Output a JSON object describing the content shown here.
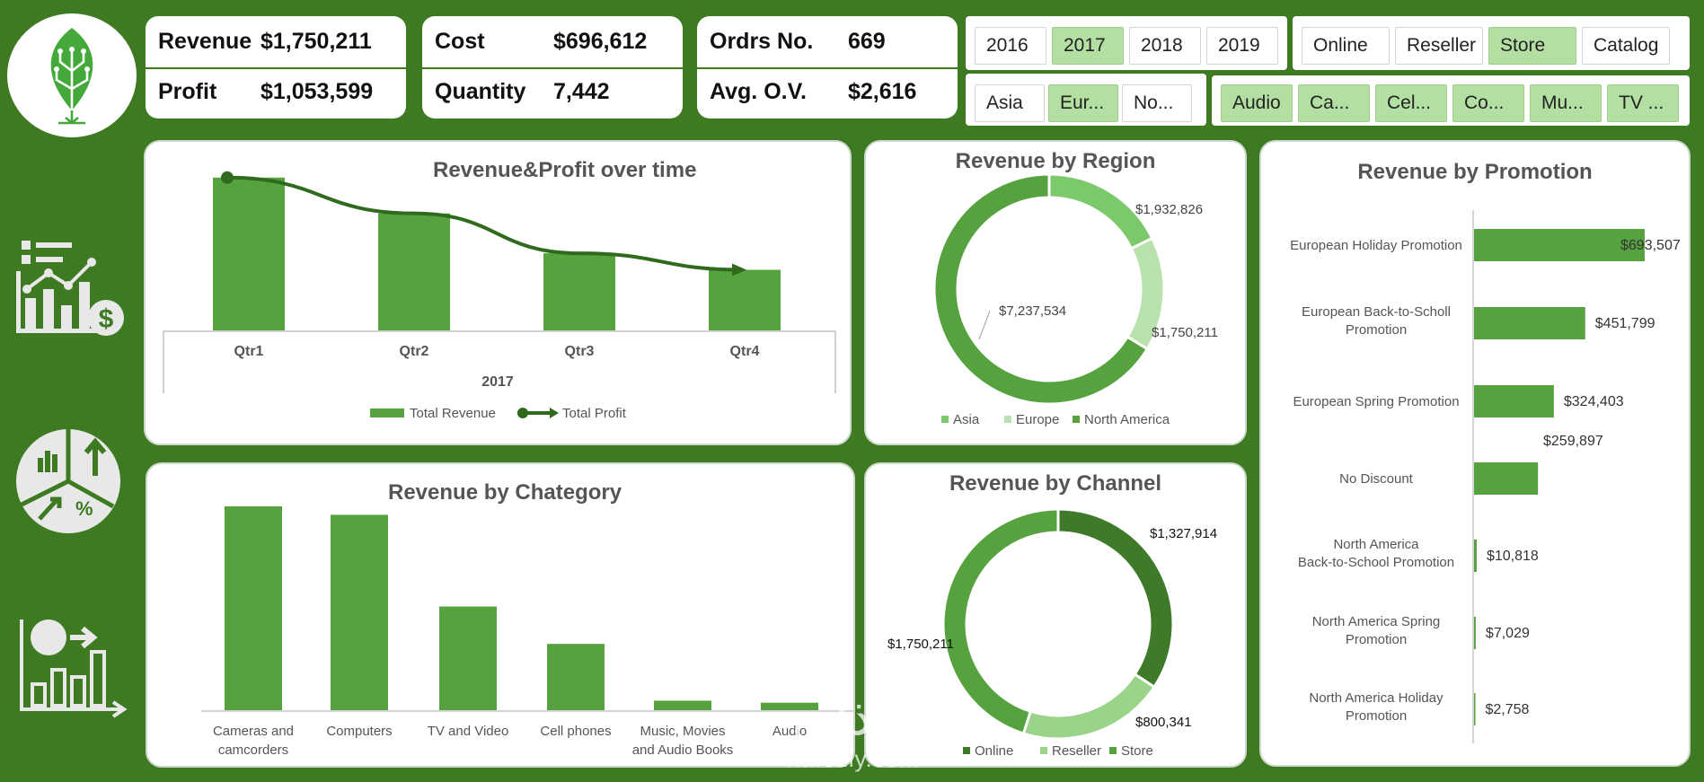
{
  "colors": {
    "background": "#3d7a22",
    "bar": "#55a23f",
    "dark": "#2f6a1e",
    "light": "#b9e2ad",
    "mid": "#7bc96a",
    "selected": "#b3dfa3"
  },
  "kpis": [
    {
      "label1": "Revenue",
      "value1": "$1,750,211",
      "label2": "Profit",
      "value2": "$1,053,599"
    },
    {
      "label1": "Cost",
      "value1": "$696,612",
      "label2": "Quantity",
      "value2": "7,442"
    },
    {
      "label1": "Ordrs No.",
      "value1": "669",
      "label2": "Avg. O.V.",
      "value2": "$2,616"
    }
  ],
  "slicers": {
    "years": [
      {
        "label": "2016",
        "selected": false
      },
      {
        "label": "2017",
        "selected": true
      },
      {
        "label": "2018",
        "selected": false
      },
      {
        "label": "2019",
        "selected": false
      }
    ],
    "channels": [
      {
        "label": "Online",
        "selected": false
      },
      {
        "label": "Reseller",
        "selected": false
      },
      {
        "label": "Store",
        "selected": true
      },
      {
        "label": "Catalog",
        "selected": false
      }
    ],
    "regions": [
      {
        "label": "Asia",
        "selected": false
      },
      {
        "label": "Eur...",
        "selected": true
      },
      {
        "label": "No...",
        "selected": false
      }
    ],
    "categories": [
      {
        "label": "Audio",
        "selected": true
      },
      {
        "label": "Ca...",
        "selected": true
      },
      {
        "label": "Cel...",
        "selected": true
      },
      {
        "label": "Co...",
        "selected": true
      },
      {
        "label": "Mu...",
        "selected": true
      },
      {
        "label": "TV ...",
        "selected": true
      }
    ]
  },
  "icons": [
    "leaf-circuit-logo-icon",
    "analytics-dollar-icon",
    "pie-growth-percent-icon",
    "bar-chart-arrow-icon"
  ],
  "chart_data": [
    {
      "type": "bar",
      "title": "Revenue&Profit over time",
      "categories": [
        "Qtr1",
        "Qtr2",
        "Qtr3",
        "Qtr4"
      ],
      "group_label": "2017",
      "series": [
        {
          "name": "Total Revenue",
          "values": [
            555000,
            425000,
            280000,
            220000
          ]
        },
        {
          "name": "Total Profit",
          "type": "line",
          "values": [
            555000,
            425000,
            280000,
            220000
          ]
        }
      ],
      "ylim": [
        0,
        600000
      ]
    },
    {
      "type": "pie",
      "title": "Revenue by Region",
      "labels": [
        "Asia",
        "Europe",
        "North America"
      ],
      "values": [
        1932826,
        1750211,
        7237534
      ],
      "value_labels": [
        "$1,932,826",
        "$1,750,211",
        "$7,237,534"
      ],
      "colors": [
        "#7bc96a",
        "#b9e2ad",
        "#55a23f"
      ],
      "legend": "bottom"
    },
    {
      "type": "bar",
      "orientation": "horizontal",
      "title": "Revenue by Promotion",
      "categories": [
        "European Holiday Promotion",
        "European Back-to-Scholl Promotion",
        "European Spring Promotion",
        "No Discount",
        "North America Back-to-School Promotion",
        "North America Spring Promotion",
        "North America Holiday Promotion"
      ],
      "values": [
        693507,
        451799,
        324403,
        259897,
        10818,
        7029,
        2758
      ],
      "value_labels": [
        "$693,507",
        "$451,799",
        "$324,403",
        "$259,897",
        "$10,818",
        "$7,029",
        "$2,758"
      ]
    },
    {
      "type": "bar",
      "title": "Revenue by Chategory",
      "categories": [
        "Cameras and camcorders",
        "Computers",
        "TV and Video",
        "Cell phones",
        "Music, Movies and Audio Books",
        "Audio"
      ],
      "values": [
        600000,
        575000,
        305000,
        195000,
        28000,
        22000
      ],
      "ylim": [
        0,
        650000
      ]
    },
    {
      "type": "pie",
      "title": "Revenue by Channel",
      "labels": [
        "Online",
        "Reseller",
        "Store"
      ],
      "values": [
        1327914,
        800341,
        1750211
      ],
      "value_labels": [
        "$1,327,914",
        "$800,341",
        "$1,750,211"
      ],
      "colors": [
        "#3f7a2a",
        "#9ad48a",
        "#55a23f"
      ],
      "legend": "bottom"
    }
  ],
  "watermark": {
    "arabic": "نفذلي",
    "latin": "nafezly.com"
  }
}
